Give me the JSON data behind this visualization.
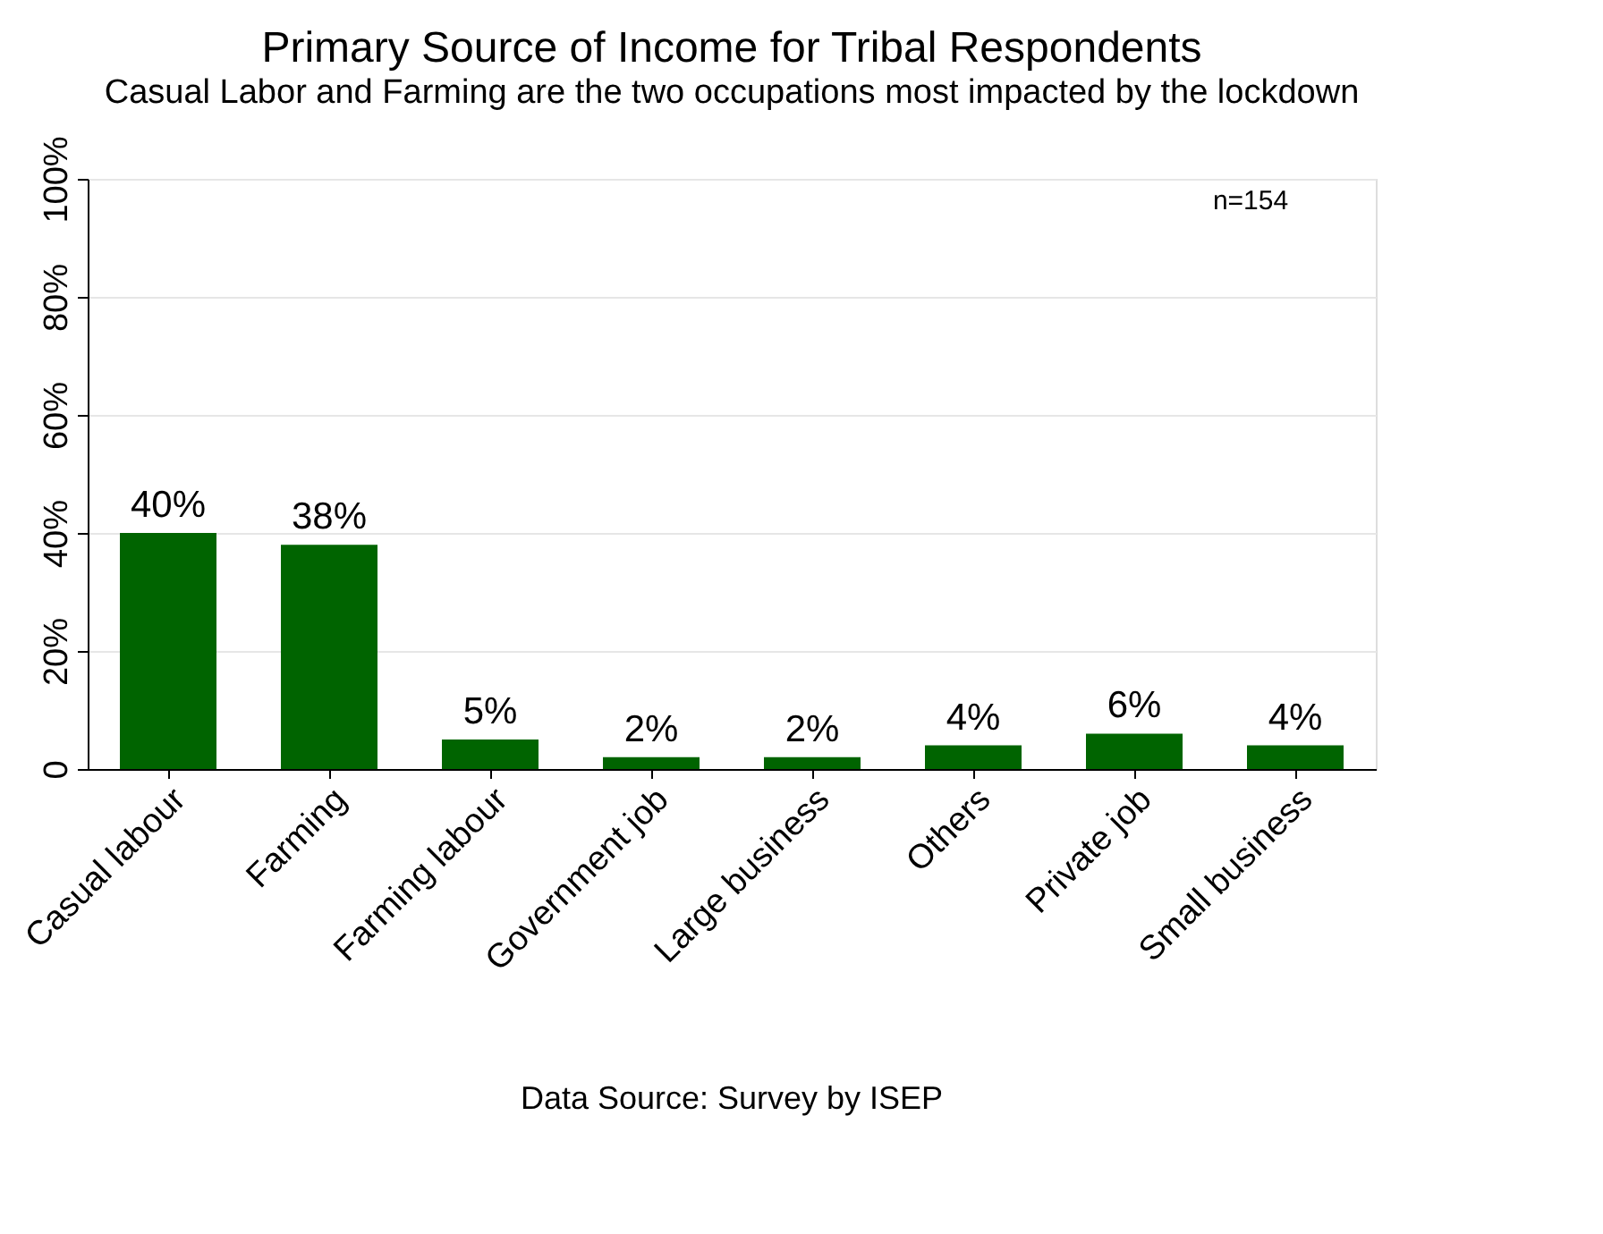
{
  "chart_data": {
    "type": "bar",
    "title": "Primary Source of Income for Tribal Respondents",
    "subtitle": "Casual Labor and Farming are the two occupations most impacted by the lockdown",
    "categories": [
      "Casual labour",
      "Farming",
      "Farming labour",
      "Government job",
      "Large business",
      "Others",
      "Private job",
      "Small business"
    ],
    "values": [
      40,
      38,
      5,
      2,
      2,
      4,
      6,
      4
    ],
    "value_labels": [
      "40%",
      "38%",
      "5%",
      "2%",
      "2%",
      "4%",
      "6%",
      "4%"
    ],
    "color": "#006400",
    "ylim": [
      0,
      100
    ],
    "yticks": [
      0,
      {
        "value": 20,
        "label": "20%"
      },
      {
        "value": 40,
        "label": "40%"
      },
      {
        "value": 60,
        "label": "60%"
      },
      {
        "value": 80,
        "label": "80%"
      },
      {
        "value": 100,
        "label": "100%"
      }
    ],
    "grid": "y",
    "annotations": [
      "n=154",
      "Data Source: Survey by ISEP"
    ]
  }
}
